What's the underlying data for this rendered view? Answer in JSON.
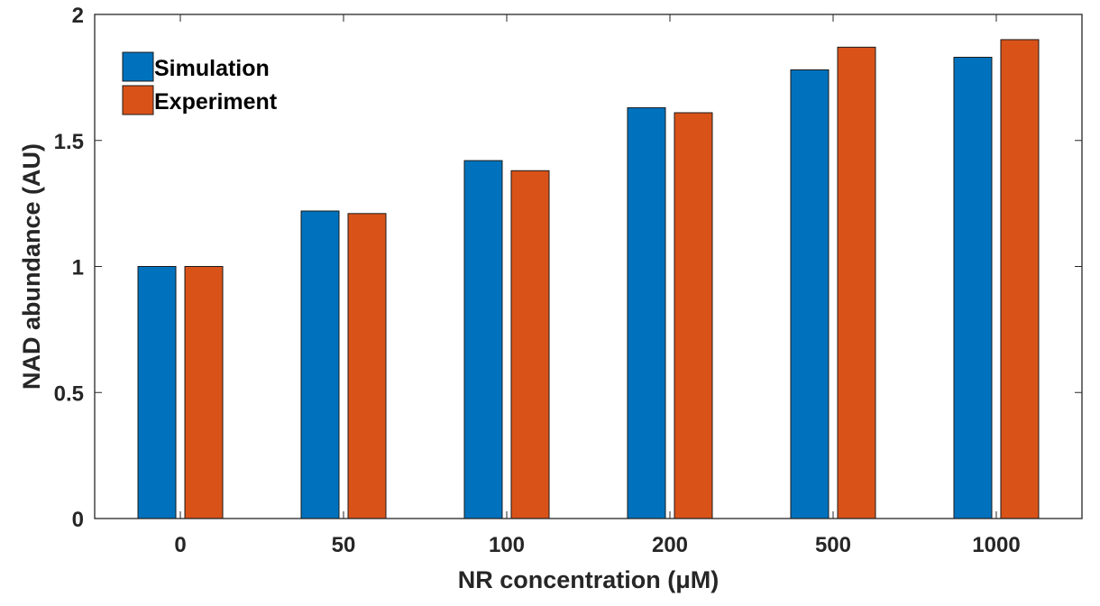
{
  "chart_data": {
    "type": "bar",
    "categories": [
      "0",
      "50",
      "100",
      "200",
      "500",
      "1000"
    ],
    "series": [
      {
        "name": "Simulation",
        "color": "#0072BD",
        "values": [
          1.0,
          1.22,
          1.42,
          1.63,
          1.78,
          1.83
        ]
      },
      {
        "name": "Experiment",
        "color": "#D95319",
        "values": [
          1.0,
          1.21,
          1.38,
          1.61,
          1.87,
          1.9
        ]
      }
    ],
    "title": "",
    "xlabel": "NR concentration (μM)",
    "ylabel": "NAD abundance (AU)",
    "ylim": [
      0,
      2
    ],
    "yticks": [
      0,
      0.5,
      1,
      1.5,
      2
    ],
    "ytick_labels": [
      "0",
      "0.5",
      "1",
      "1.5",
      "2"
    ],
    "grid": false,
    "legend_position": "top-left",
    "box": true
  }
}
